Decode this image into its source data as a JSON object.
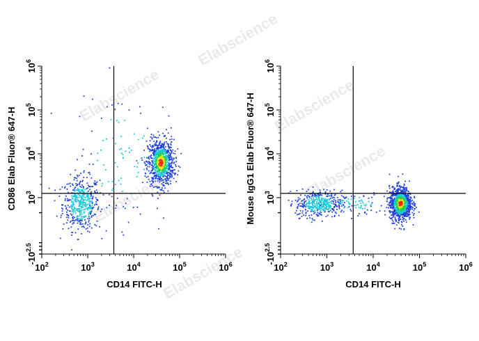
{
  "watermark": "Elabscience",
  "chart_data": [
    {
      "type": "scatter",
      "subtype": "flow-cytometry-density-dot-plot",
      "xlabel": "CD14 FITC-H",
      "ylabel": "CD86 Elab Fluor® 647-H",
      "x_scale": "log",
      "y_scale": "biexponential",
      "xlim": [
        100,
        1000000
      ],
      "ylim": [
        -316,
        1000000
      ],
      "x_ticks": [
        {
          "base": "10",
          "exp": "2",
          "value": 100
        },
        {
          "base": "10",
          "exp": "3",
          "value": 1000
        },
        {
          "base": "10",
          "exp": "4",
          "value": 10000
        },
        {
          "base": "10",
          "exp": "5",
          "value": 100000
        },
        {
          "base": "10",
          "exp": "6",
          "value": 1000000
        }
      ],
      "y_ticks": [
        {
          "base": "-10",
          "exp": "2.5",
          "value": -316
        },
        {
          "base": "10",
          "exp": "3",
          "value": 1000
        },
        {
          "base": "10",
          "exp": "4",
          "value": 10000
        },
        {
          "base": "10",
          "exp": "5",
          "value": 100000
        },
        {
          "base": "10",
          "exp": "6",
          "value": 1000000
        }
      ],
      "gate": {
        "x": 3700,
        "y": 1250
      },
      "populations": [
        {
          "name": "CD14- CD86-",
          "x_center": 700,
          "y_center": 420,
          "log_x_spread": 0.2,
          "y_spread": 0.12,
          "count": 480,
          "density": "low"
        },
        {
          "name": "CD14+ CD86+",
          "x_center": 38000,
          "y_center": 6500,
          "log_x_spread": 0.14,
          "y_spread": 0.11,
          "count": 900,
          "density": "high"
        },
        {
          "name": "scatter",
          "x_center": 5000,
          "y_center": 9000,
          "log_x_spread": 0.5,
          "y_spread": 0.3,
          "count": 110,
          "density": "low"
        }
      ]
    },
    {
      "type": "scatter",
      "subtype": "flow-cytometry-density-dot-plot",
      "xlabel": "CD14 FITC-H",
      "ylabel": "Mouse IgG1 Elab Fluor® 647-H",
      "x_scale": "log",
      "y_scale": "biexponential",
      "xlim": [
        100,
        1000000
      ],
      "ylim": [
        -316,
        1000000
      ],
      "x_ticks": [
        {
          "base": "10",
          "exp": "2",
          "value": 100
        },
        {
          "base": "10",
          "exp": "3",
          "value": 1000
        },
        {
          "base": "10",
          "exp": "4",
          "value": 10000
        },
        {
          "base": "10",
          "exp": "5",
          "value": 100000
        },
        {
          "base": "10",
          "exp": "6",
          "value": 1000000
        }
      ],
      "y_ticks": [
        {
          "base": "-10",
          "exp": "2.5",
          "value": -316
        },
        {
          "base": "10",
          "exp": "3",
          "value": 1000
        },
        {
          "base": "10",
          "exp": "4",
          "value": 10000
        },
        {
          "base": "10",
          "exp": "5",
          "value": 100000
        },
        {
          "base": "10",
          "exp": "6",
          "value": 1000000
        }
      ],
      "gate": {
        "x": 3700,
        "y": 1250
      },
      "populations": [
        {
          "name": "CD14- isotype",
          "x_center": 650,
          "y_center": 420,
          "log_x_spread": 0.25,
          "y_spread": 0.06,
          "count": 420,
          "density": "low"
        },
        {
          "name": "CD14+ isotype",
          "x_center": 38000,
          "y_center": 430,
          "log_x_spread": 0.12,
          "y_spread": 0.08,
          "count": 1000,
          "density": "high"
        },
        {
          "name": "bridge",
          "x_center": 4000,
          "y_center": 430,
          "log_x_spread": 0.3,
          "y_spread": 0.05,
          "count": 80,
          "density": "low"
        }
      ]
    }
  ],
  "colors": {
    "axis": "#000000",
    "gate": "#000000",
    "density_low": "#1f3fd6",
    "density_mid": "#18c8d8",
    "density_midhigh": "#22d24a",
    "density_high": "#f0e020",
    "density_peak": "#e82a10"
  }
}
